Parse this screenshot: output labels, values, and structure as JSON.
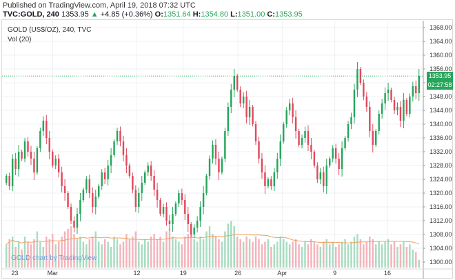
{
  "header": {
    "published": "Published on TradingView.com, April 19, 2018 07:32 UTC",
    "symbol": "TVC:GOLD, 240",
    "last": "1353.95",
    "change": "+4.85 (+0.36%)",
    "o_label": "O:",
    "o_value": "1351.64",
    "h_label": "H:",
    "h_value": "1354.80",
    "l_label": "L:",
    "l_value": "1351.00",
    "c_label": "C:",
    "c_value": "1353.95"
  },
  "legend": {
    "main": "GOLD (US$/OZ), 240, TVC",
    "volume": "Vol (20)"
  },
  "watermark": "GOLD chart by TradingView",
  "price_tag": "1353.95",
  "time_tag": "02:27:58",
  "colors": {
    "up": "#26a65b",
    "down": "#e04a5c",
    "vol_up": "#a8dcc0",
    "vol_down": "#f4b3bb",
    "ma": "#f0a060",
    "last_line": "#26a65b"
  },
  "chart_data": {
    "type": "candlestick",
    "ylim": [
      1298,
      1370
    ],
    "yticks": [
      1300,
      1304,
      1308,
      1312,
      1316,
      1320,
      1324,
      1328,
      1332,
      1336,
      1340,
      1344,
      1348,
      1352,
      1356,
      1360,
      1364,
      1368
    ],
    "xticks": [
      "23",
      "Mar",
      "12",
      "19",
      "26",
      "Apr",
      "9",
      "16"
    ],
    "last_price": 1353.95,
    "closes": [
      1325,
      1322,
      1330,
      1327,
      1332,
      1330,
      1335,
      1332,
      1330,
      1326,
      1333,
      1338,
      1341,
      1336,
      1332,
      1328,
      1330,
      1326,
      1322,
      1320,
      1316,
      1312,
      1310,
      1314,
      1318,
      1321,
      1324,
      1320,
      1316,
      1319,
      1322,
      1326,
      1324,
      1328,
      1331,
      1335,
      1338,
      1335,
      1331,
      1328,
      1325,
      1321,
      1316,
      1320,
      1323,
      1326,
      1328,
      1325,
      1321,
      1318,
      1314,
      1316,
      1312,
      1311,
      1314,
      1317,
      1320,
      1318,
      1314,
      1311,
      1308,
      1310,
      1312,
      1316,
      1320,
      1325,
      1330,
      1334,
      1330,
      1326,
      1330,
      1338,
      1345,
      1350,
      1354,
      1350,
      1346,
      1348,
      1342,
      1345,
      1340,
      1335,
      1330,
      1326,
      1322,
      1324,
      1322,
      1326,
      1330,
      1335,
      1340,
      1344,
      1346,
      1342,
      1338,
      1334,
      1336,
      1338,
      1334,
      1332,
      1328,
      1324,
      1326,
      1322,
      1328,
      1330,
      1333,
      1330,
      1327,
      1333,
      1336,
      1340,
      1342,
      1350,
      1356,
      1352,
      1348,
      1345,
      1338,
      1334,
      1338,
      1343,
      1346,
      1349,
      1350,
      1347,
      1344,
      1345,
      1341,
      1347,
      1343,
      1348,
      1351,
      1349,
      1354
    ],
    "volumes": [
      0.45,
      0.55,
      0.6,
      0.4,
      0.5,
      0.35,
      0.6,
      0.5,
      0.45,
      0.55,
      0.7,
      0.5,
      0.4,
      0.6,
      0.55,
      0.65,
      0.45,
      0.5,
      0.6,
      0.7,
      0.75,
      0.8,
      0.65,
      0.55,
      0.6,
      0.5,
      0.45,
      0.55,
      0.6,
      0.7,
      0.5,
      0.45,
      0.55,
      0.5,
      0.4,
      0.6,
      0.55,
      0.45,
      0.5,
      0.65,
      0.55,
      0.6,
      0.7,
      0.5,
      0.45,
      0.55,
      0.5,
      0.6,
      0.65,
      0.55,
      0.6,
      0.5,
      0.7,
      0.75,
      0.6,
      0.55,
      0.5,
      0.45,
      0.6,
      0.65,
      0.7,
      0.55,
      0.5,
      0.6,
      0.55,
      0.7,
      0.8,
      0.65,
      0.6,
      0.55,
      0.5,
      0.7,
      0.85,
      0.9,
      0.8,
      0.6,
      0.55,
      0.5,
      0.6,
      0.55,
      0.5,
      0.6,
      0.55,
      0.45,
      0.5,
      0.55,
      0.4,
      0.45,
      0.5,
      0.6,
      0.55,
      0.5,
      0.45,
      0.5,
      0.55,
      0.45,
      0.4,
      0.5,
      0.45,
      0.55,
      0.5,
      0.45,
      0.4,
      0.5,
      0.55,
      0.45,
      0.5,
      0.4,
      0.45,
      0.5,
      0.55,
      0.45,
      0.5,
      0.6,
      0.65,
      0.55,
      0.45,
      0.5,
      0.6,
      0.55,
      0.45,
      0.5,
      0.45,
      0.5,
      0.55,
      0.45,
      0.5,
      0.4,
      0.45,
      0.5,
      0.4,
      0.45,
      0.35,
      0.3,
      0.15
    ]
  }
}
